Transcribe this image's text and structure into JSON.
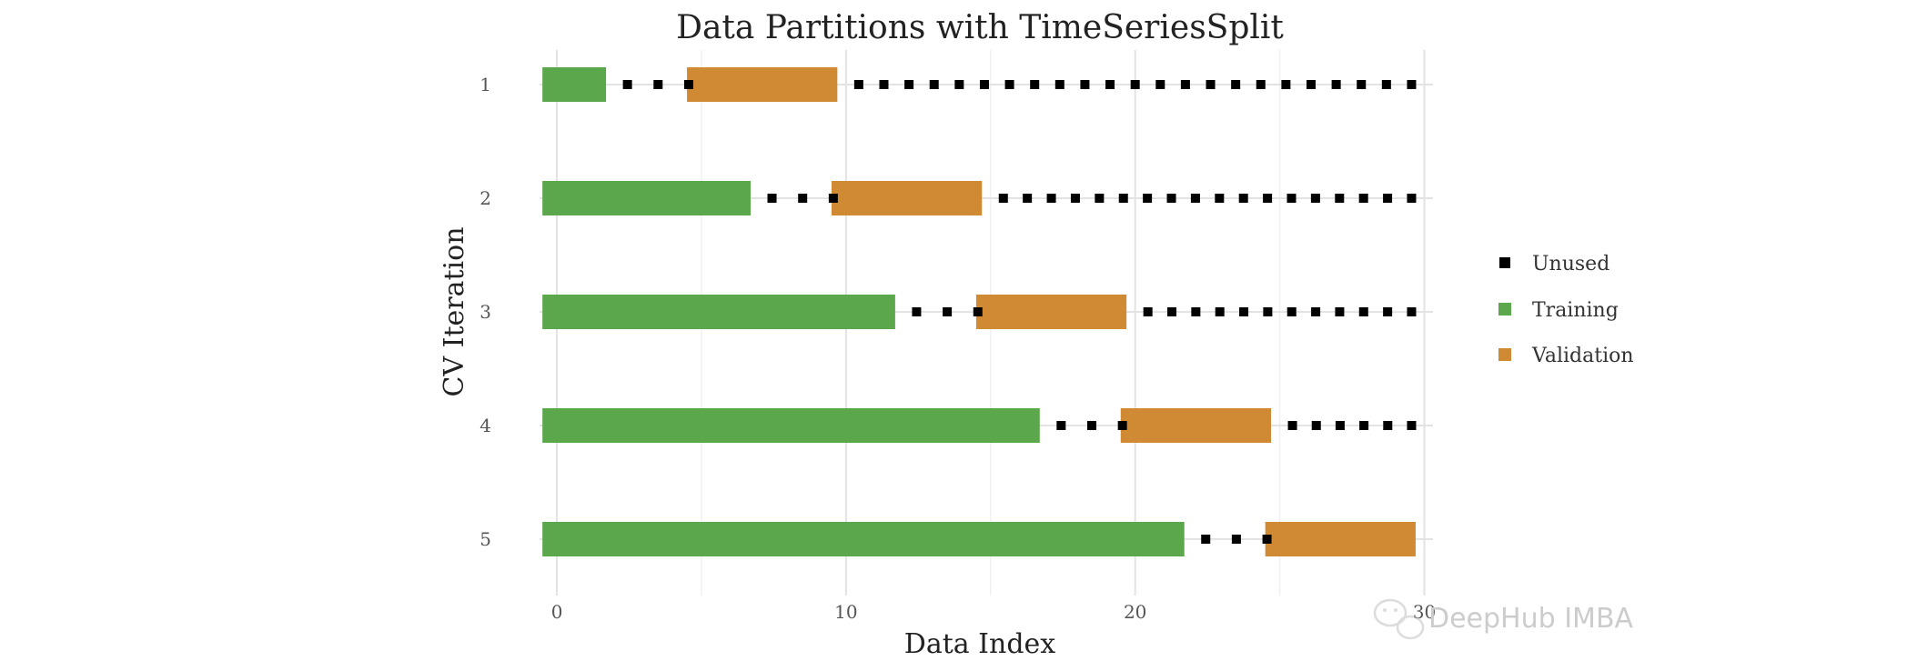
{
  "chart_data": {
    "type": "bar",
    "title": "Data Partitions with TimeSeriesSplit",
    "xlabel": "Data Index",
    "ylabel": "CV Iteration",
    "xlim": [
      -0.6,
      30.3
    ],
    "x_ticks": [
      0,
      10,
      20,
      30
    ],
    "y_categories": [
      "1",
      "2",
      "3",
      "4",
      "5"
    ],
    "grid": true,
    "legend_position": "right",
    "legend": [
      {
        "key": "unused",
        "label": "Unused",
        "color": "#000000"
      },
      {
        "key": "training",
        "label": "Training",
        "color": "#5ba84c"
      },
      {
        "key": "validation",
        "label": "Validation",
        "color": "#cf8a33"
      }
    ],
    "series": [
      {
        "iteration": "1",
        "training": [
          0,
          2
        ],
        "unused_gap": [
          2,
          5
        ],
        "validation": [
          5,
          10
        ],
        "unused_tail": [
          10,
          30
        ]
      },
      {
        "iteration": "2",
        "training": [
          0,
          7
        ],
        "unused_gap": [
          7,
          10
        ],
        "validation": [
          10,
          15
        ],
        "unused_tail": [
          15,
          30
        ]
      },
      {
        "iteration": "3",
        "training": [
          0,
          12
        ],
        "unused_gap": [
          12,
          15
        ],
        "validation": [
          15,
          20
        ],
        "unused_tail": [
          20,
          30
        ]
      },
      {
        "iteration": "4",
        "training": [
          0,
          17
        ],
        "unused_gap": [
          17,
          20
        ],
        "validation": [
          20,
          25
        ],
        "unused_tail": [
          25,
          30
        ]
      },
      {
        "iteration": "5",
        "training": [
          0,
          22
        ],
        "unused_gap": [
          22,
          25
        ],
        "validation": [
          25,
          30
        ],
        "unused_tail": [
          30,
          30
        ]
      }
    ]
  },
  "watermark": {
    "text": "DeepHub IMBA",
    "icon": "wechat-icon"
  }
}
